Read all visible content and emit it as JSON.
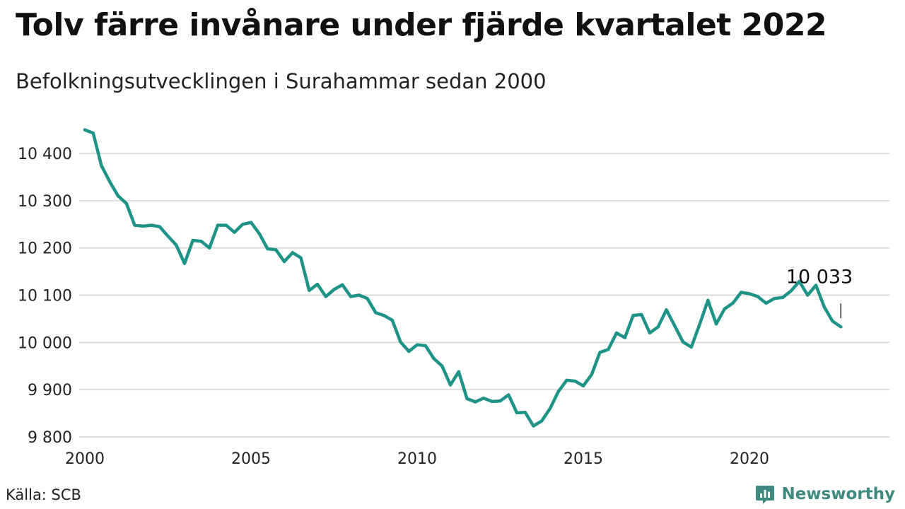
{
  "header": {
    "title": "Tolv färre invånare under fjärde kvartalet 2022",
    "subtitle": "Befolkningsutvecklingen i Surahammar sedan 2000"
  },
  "footer": {
    "source": "Källa: SCB",
    "brand": "Newsworthy",
    "brand_icon": "newsworthy-logo-icon",
    "brand_color": "#3e8a80"
  },
  "chart_data": {
    "type": "line",
    "title": "Tolv färre invånare under fjärde kvartalet 2022",
    "subtitle": "Befolkningsutvecklingen i Surahammar sedan 2000",
    "xlabel": "",
    "ylabel": "",
    "xlim": [
      2000,
      2023.4
    ],
    "ylim": [
      9800,
      10450
    ],
    "x_ticks": [
      2000,
      2005,
      2010,
      2015,
      2020
    ],
    "x_tick_labels": [
      "2000",
      "2005",
      "2010",
      "2015",
      "2020"
    ],
    "y_ticks": [
      9800,
      9900,
      10000,
      10100,
      10200,
      10300,
      10400
    ],
    "y_tick_labels": [
      "9 800",
      "9 900",
      "10 000",
      "10 100",
      "10 200",
      "10 300",
      "10 400"
    ],
    "grid": "horizontal",
    "line_color": "#1e9388",
    "series": [
      {
        "x": [
          2000.0,
          2000.25,
          2000.5,
          2000.75,
          2001.0,
          2001.25,
          2001.5,
          2001.75,
          2002.0,
          2002.25,
          2002.5,
          2002.75,
          2003.0,
          2003.25,
          2003.5,
          2003.75,
          2004.0,
          2004.25,
          2004.5,
          2004.75,
          2005.0,
          2005.25,
          2005.5,
          2005.75,
          2006.0,
          2006.25,
          2006.5,
          2006.75,
          2007.0,
          2007.25,
          2007.5,
          2007.75,
          2008.0,
          2008.25,
          2008.5,
          2008.75,
          2009.0,
          2009.25,
          2009.5,
          2009.75,
          2010.0,
          2010.25,
          2010.5,
          2010.75,
          2011.0,
          2011.25,
          2011.5,
          2011.75,
          2012.0,
          2012.25,
          2012.5,
          2012.75,
          2013.0,
          2013.25,
          2013.5,
          2013.75,
          2014.0,
          2014.25,
          2014.5,
          2014.75,
          2015.0,
          2015.25,
          2015.5,
          2015.75,
          2016.0,
          2016.25,
          2016.5,
          2016.75,
          2017.0,
          2017.25,
          2017.5,
          2017.75,
          2018.0,
          2018.25,
          2018.5,
          2018.75,
          2019.0,
          2019.25,
          2019.5,
          2019.75,
          2020.0,
          2020.25,
          2020.5,
          2020.75,
          2021.0,
          2021.25,
          2021.5,
          2021.75,
          2022.0,
          2022.25,
          2022.5,
          2022.75
        ],
        "values": [
          10450,
          10443,
          10374,
          10340,
          10310,
          10294,
          10248,
          10246,
          10248,
          10245,
          10225,
          10206,
          10167,
          10216,
          10214,
          10200,
          10248,
          10248,
          10233,
          10250,
          10254,
          10230,
          10198,
          10196,
          10171,
          10190,
          10179,
          10110,
          10123,
          10097,
          10112,
          10122,
          10097,
          10100,
          10093,
          10063,
          10057,
          10047,
          10001,
          9981,
          9995,
          9993,
          9966,
          9950,
          9910,
          9938,
          9881,
          9874,
          9882,
          9875,
          9876,
          9889,
          9851,
          9852,
          9823,
          9834,
          9860,
          9896,
          9920,
          9918,
          9908,
          9932,
          9979,
          9985,
          10020,
          10010,
          10057,
          10059,
          10020,
          10033,
          10069,
          10035,
          10001,
          9990,
          10038,
          10089,
          10039,
          10071,
          10083,
          10106,
          10103,
          10097,
          10083,
          10093,
          10095,
          10109,
          10129,
          10100,
          10121,
          10075,
          10045,
          10033
        ]
      }
    ],
    "annotations": [
      {
        "x": 2022.75,
        "y": 10033,
        "text": "10 033"
      }
    ]
  }
}
